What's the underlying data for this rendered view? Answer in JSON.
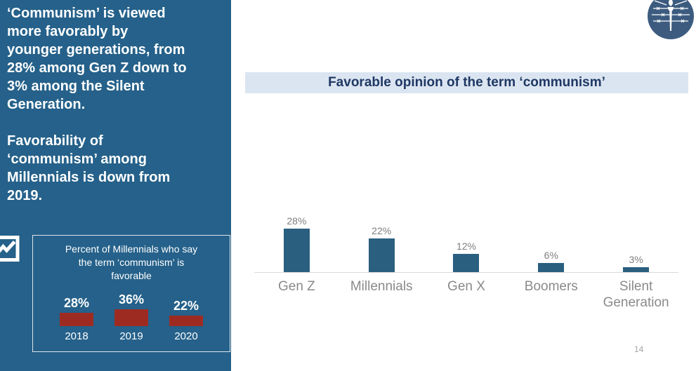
{
  "sidebar": {
    "paragraph1": "‘Communism’ is viewed\nmore favorably by\nyounger generations, from\n28% among Gen Z down to\n3% among the Silent\nGeneration.",
    "paragraph2": "Favorability of\n‘communism’ among\nMillennials is down from\n2019.",
    "icon": "line-chart-icon",
    "background_color": "#25618A",
    "text_color": "#FFFFFF"
  },
  "main": {
    "title": "Favorable opinion of the term ‘communism’",
    "title_background": "#DBE5F1",
    "title_color": "#1F3864",
    "logo": "torch-barbed-wire-logo",
    "page_number": "14"
  },
  "chart_data": [
    {
      "id": "generation-favorability-chart",
      "type": "bar",
      "title": "Favorable opinion of the term ‘communism’",
      "categories": [
        "Gen Z",
        "Millennials",
        "Gen X",
        "Boomers",
        "Silent Generation"
      ],
      "values": [
        28,
        22,
        12,
        6,
        3
      ],
      "data_labels": [
        "28%",
        "22%",
        "12%",
        "6%",
        "3%"
      ],
      "bar_color": "#2A5F80",
      "label_color": "#7F7F7F",
      "axis_line_color": "#D9D9D9",
      "xlabel": "",
      "ylabel": "",
      "ylim": [
        0,
        40
      ],
      "grid": false,
      "legend": "none"
    },
    {
      "id": "millennials-trend-chart",
      "type": "bar",
      "title": "Percent of Millennials who say\nthe term ‘communism’ is\nfavorable",
      "categories": [
        "2018",
        "2019",
        "2020"
      ],
      "values": [
        28,
        36,
        22
      ],
      "data_labels": [
        "28%",
        "36%",
        "22%"
      ],
      "bar_color": "#9E2B22",
      "label_color": "#FFFFFF",
      "category_color": "#FFFFFF",
      "xlabel": "",
      "ylabel": "",
      "ylim": [
        0,
        40
      ],
      "grid": false,
      "legend": "none"
    }
  ]
}
